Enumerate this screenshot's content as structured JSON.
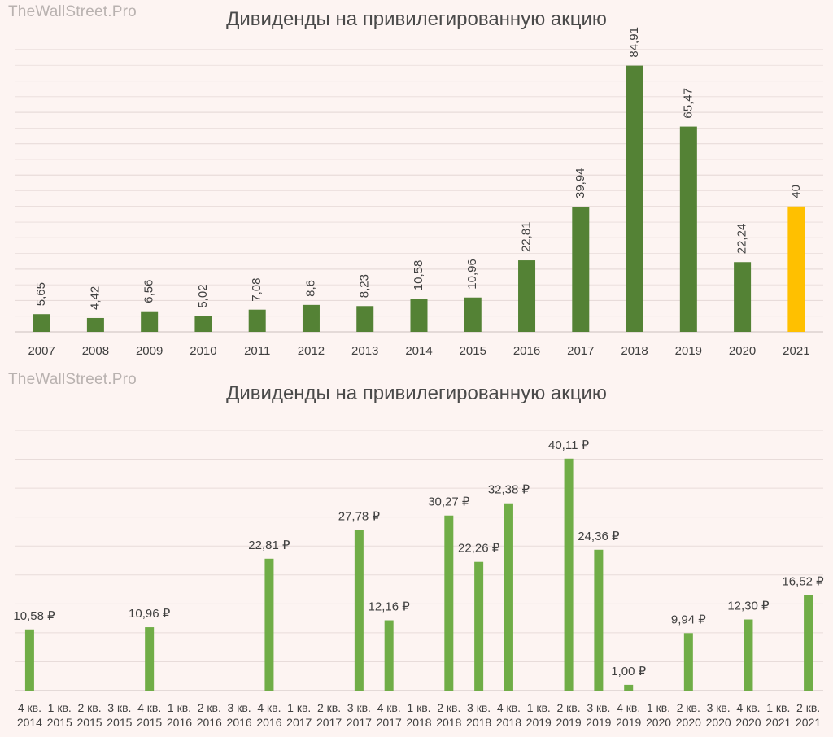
{
  "chart_data": [
    {
      "type": "bar",
      "watermark": "TheWallStreet.Pro",
      "title": "Дивиденды на привилегированную акцию",
      "categories": [
        "2007",
        "2008",
        "2009",
        "2010",
        "2011",
        "2012",
        "2013",
        "2014",
        "2015",
        "2016",
        "2017",
        "2018",
        "2019",
        "2020",
        "2021"
      ],
      "values": [
        5.65,
        4.42,
        6.56,
        5.02,
        7.08,
        8.6,
        8.23,
        10.58,
        10.96,
        22.81,
        39.94,
        84.91,
        65.47,
        22.24,
        40
      ],
      "data_labels": [
        "5,65",
        "4,42",
        "6,56",
        "5,02",
        "7,08",
        "8,6",
        "8,23",
        "10,58",
        "10,96",
        "22,81",
        "39,94",
        "84,91",
        "65,47",
        "22,24",
        "40"
      ],
      "highlight_index": 14,
      "colors": {
        "bar": "#548235",
        "highlight": "#ffc000",
        "grid": "#e8dcda"
      },
      "ylim": [
        0,
        90
      ],
      "grid": true
    },
    {
      "type": "bar",
      "watermark": "TheWallStreet.Pro",
      "title": "Дивиденды на привилегированную акцию",
      "categories": [
        [
          "4 кв.",
          "2014"
        ],
        [
          "1 кв.",
          "2015"
        ],
        [
          "2 кв.",
          "2015"
        ],
        [
          "3 кв.",
          "2015"
        ],
        [
          "4 кв.",
          "2015"
        ],
        [
          "1 кв.",
          "2016"
        ],
        [
          "2 кв.",
          "2016"
        ],
        [
          "3 кв.",
          "2016"
        ],
        [
          "4 кв.",
          "2016"
        ],
        [
          "1 кв.",
          "2017"
        ],
        [
          "2 кв.",
          "2017"
        ],
        [
          "3 кв.",
          "2017"
        ],
        [
          "4 кв.",
          "2017"
        ],
        [
          "1 кв.",
          "2018"
        ],
        [
          "2 кв.",
          "2018"
        ],
        [
          "3 кв.",
          "2018"
        ],
        [
          "4 кв.",
          "2018"
        ],
        [
          "1 кв.",
          "2019"
        ],
        [
          "2 кв.",
          "2019"
        ],
        [
          "3 кв.",
          "2019"
        ],
        [
          "4 кв.",
          "2019"
        ],
        [
          "1 кв.",
          "2020"
        ],
        [
          "2 кв.",
          "2020"
        ],
        [
          "3 кв.",
          "2020"
        ],
        [
          "4 кв.",
          "2020"
        ],
        [
          "1 кв.",
          "2021"
        ],
        [
          "2 кв.",
          "2021"
        ]
      ],
      "values": [
        10.58,
        null,
        null,
        null,
        10.96,
        null,
        null,
        null,
        22.81,
        null,
        null,
        27.78,
        12.16,
        null,
        30.27,
        22.26,
        32.38,
        null,
        40.11,
        24.36,
        1.0,
        null,
        9.94,
        null,
        12.3,
        null,
        16.52
      ],
      "data_labels": [
        "10,58 ₽",
        "",
        "",
        "",
        "10,96 ₽",
        "",
        "",
        "",
        "22,81 ₽",
        "",
        "",
        "27,78 ₽",
        "12,16 ₽",
        "",
        "30,27 ₽",
        "22,26 ₽",
        "32,38 ₽",
        "",
        "40,11 ₽",
        "24,36 ₽",
        "1,00 ₽",
        "",
        "9,94 ₽",
        "",
        "12,30 ₽",
        "",
        "16,52 ₽"
      ],
      "colors": {
        "bar": "#70ad47",
        "grid": "#e8dcda"
      },
      "ylim": [
        0,
        45
      ],
      "grid": true
    }
  ]
}
